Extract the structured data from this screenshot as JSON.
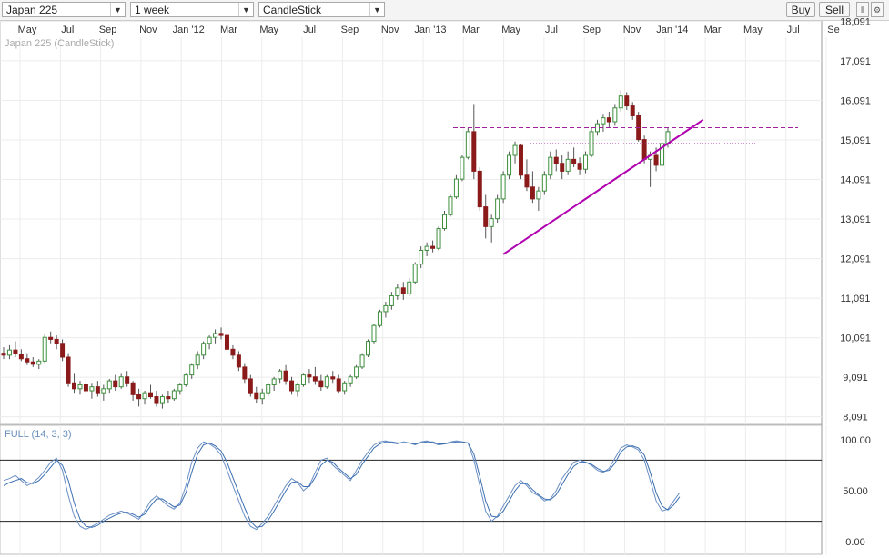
{
  "toolbar": {
    "instrument": "Japan 225",
    "period": "1 week",
    "chart_type": "CandleStick",
    "buy_label": "Buy",
    "sell_label": "Sell",
    "icons": [
      "candle-style-icon",
      "settings-icon"
    ]
  },
  "chart_data": [
    {
      "type": "candlestick",
      "title": "Japan 225 (CandleStick)",
      "x_ticks": [
        "May",
        "Jul",
        "Sep",
        "Nov",
        "Jan '12",
        "Mar",
        "May",
        "Jul",
        "Sep",
        "Nov",
        "Jan '13",
        "Mar",
        "May",
        "Jul",
        "Sep",
        "Nov",
        "Jan '14",
        "Mar",
        "May",
        "Jul",
        "Se"
      ],
      "y_ticks": [
        8091,
        9091,
        10091,
        11091,
        12091,
        13091,
        14091,
        15091,
        16091,
        17091,
        18091
      ],
      "ylim": [
        7900,
        18100
      ],
      "candles": [
        [
          9700,
          9850,
          9550,
          9650
        ],
        [
          9650,
          9900,
          9550,
          9780
        ],
        [
          9780,
          10000,
          9600,
          9680
        ],
        [
          9680,
          9800,
          9500,
          9560
        ],
        [
          9560,
          9700,
          9400,
          9480
        ],
        [
          9480,
          9600,
          9350,
          9420
        ],
        [
          9420,
          9550,
          9300,
          9500
        ],
        [
          9500,
          10200,
          9450,
          10100
        ],
        [
          10100,
          10250,
          9950,
          10050
        ],
        [
          10050,
          10150,
          9800,
          9950
        ],
        [
          9950,
          10050,
          9500,
          9600
        ],
        [
          9600,
          9700,
          8850,
          8950
        ],
        [
          8950,
          9200,
          8700,
          8800
        ],
        [
          8800,
          9000,
          8650,
          8900
        ],
        [
          8900,
          9050,
          8700,
          8750
        ],
        [
          8750,
          8950,
          8550,
          8850
        ],
        [
          8850,
          9000,
          8600,
          8700
        ],
        [
          8700,
          8900,
          8500,
          8800
        ],
        [
          8800,
          9050,
          8700,
          9000
        ],
        [
          9000,
          9150,
          8750,
          8850
        ],
        [
          8850,
          9200,
          8800,
          9100
        ],
        [
          9100,
          9250,
          8850,
          8950
        ],
        [
          8950,
          9000,
          8500,
          8650
        ],
        [
          8650,
          8800,
          8350,
          8550
        ],
        [
          8550,
          8750,
          8400,
          8700
        ],
        [
          8700,
          8900,
          8550,
          8600
        ],
        [
          8600,
          8750,
          8350,
          8450
        ],
        [
          8450,
          8650,
          8300,
          8600
        ],
        [
          8600,
          8750,
          8450,
          8550
        ],
        [
          8550,
          8800,
          8500,
          8750
        ],
        [
          8750,
          8950,
          8650,
          8900
        ],
        [
          8900,
          9200,
          8850,
          9150
        ],
        [
          9150,
          9450,
          9050,
          9400
        ],
        [
          9400,
          9750,
          9300,
          9650
        ],
        [
          9650,
          10000,
          9550,
          9950
        ],
        [
          9950,
          10150,
          9800,
          10100
        ],
        [
          10100,
          10300,
          9950,
          10200
        ],
        [
          10200,
          10350,
          10050,
          10150
        ],
        [
          10150,
          10250,
          9750,
          9800
        ],
        [
          9800,
          9900,
          9550,
          9650
        ],
        [
          9650,
          9750,
          9250,
          9350
        ],
        [
          9350,
          9450,
          8950,
          9050
        ],
        [
          9050,
          9150,
          8600,
          8700
        ],
        [
          8700,
          8850,
          8450,
          8550
        ],
        [
          8550,
          8800,
          8400,
          8700
        ],
        [
          8700,
          8950,
          8600,
          8900
        ],
        [
          8900,
          9100,
          8750,
          9050
        ],
        [
          9050,
          9300,
          8950,
          9250
        ],
        [
          9250,
          9400,
          8900,
          9000
        ],
        [
          9000,
          9100,
          8650,
          8750
        ],
        [
          8750,
          8950,
          8600,
          8900
        ],
        [
          8900,
          9200,
          8850,
          9150
        ],
        [
          9150,
          9300,
          8950,
          9100
        ],
        [
          9100,
          9350,
          8900,
          9000
        ],
        [
          9000,
          9150,
          8750,
          8850
        ],
        [
          8850,
          9150,
          8800,
          9100
        ],
        [
          9100,
          9250,
          8950,
          9050
        ],
        [
          9050,
          9150,
          8700,
          8750
        ],
        [
          8750,
          9000,
          8650,
          8950
        ],
        [
          8950,
          9150,
          8850,
          9100
        ],
        [
          9100,
          9400,
          9050,
          9350
        ],
        [
          9350,
          9700,
          9300,
          9650
        ],
        [
          9650,
          10050,
          9600,
          10000
        ],
        [
          10000,
          10450,
          9950,
          10400
        ],
        [
          10400,
          10800,
          10350,
          10750
        ],
        [
          10750,
          11000,
          10600,
          10900
        ],
        [
          10900,
          11250,
          10800,
          11150
        ],
        [
          11150,
          11450,
          11050,
          11350
        ],
        [
          11350,
          11500,
          11050,
          11200
        ],
        [
          11200,
          11600,
          11150,
          11500
        ],
        [
          11500,
          12000,
          11450,
          11950
        ],
        [
          11950,
          12400,
          11850,
          12300
        ],
        [
          12300,
          12500,
          12150,
          12400
        ],
        [
          12400,
          12550,
          12250,
          12350
        ],
        [
          12350,
          12900,
          12300,
          12850
        ],
        [
          12850,
          13300,
          12800,
          13200
        ],
        [
          13200,
          13700,
          13150,
          13650
        ],
        [
          13650,
          14200,
          13600,
          14100
        ],
        [
          14100,
          14700,
          14050,
          14650
        ],
        [
          14650,
          15400,
          14600,
          15300
        ],
        [
          15300,
          16000,
          14100,
          14300
        ],
        [
          14300,
          14400,
          13300,
          13400
        ],
        [
          13400,
          13700,
          12600,
          12900
        ],
        [
          12900,
          13200,
          12500,
          13100
        ],
        [
          13100,
          13700,
          13000,
          13600
        ],
        [
          13600,
          14300,
          13500,
          14200
        ],
        [
          14200,
          14800,
          14100,
          14700
        ],
        [
          14700,
          15050,
          14500,
          14950
        ],
        [
          14950,
          15000,
          14100,
          14200
        ],
        [
          14200,
          14600,
          13800,
          13900
        ],
        [
          13900,
          14300,
          13500,
          13600
        ],
        [
          13600,
          13900,
          13300,
          13800
        ],
        [
          13800,
          14300,
          13700,
          14200
        ],
        [
          14200,
          14800,
          14100,
          14650
        ],
        [
          14650,
          14850,
          14300,
          14500
        ],
        [
          14500,
          14700,
          14100,
          14300
        ],
        [
          14300,
          14800,
          14200,
          14600
        ],
        [
          14600,
          14900,
          14400,
          14500
        ],
        [
          14500,
          14650,
          14200,
          14350
        ],
        [
          14350,
          14800,
          14250,
          14700
        ],
        [
          14700,
          15400,
          14650,
          15300
        ],
        [
          15300,
          15600,
          15200,
          15500
        ],
        [
          15500,
          15750,
          15300,
          15650
        ],
        [
          15650,
          15800,
          15400,
          15550
        ],
        [
          15550,
          16000,
          15450,
          15900
        ],
        [
          15900,
          16350,
          15800,
          16200
        ],
        [
          16200,
          16300,
          15850,
          15950
        ],
        [
          15950,
          16050,
          15600,
          15700
        ],
        [
          15700,
          15800,
          15050,
          15100
        ],
        [
          15100,
          15200,
          14500,
          14600
        ],
        [
          14600,
          14800,
          13900,
          14700
        ],
        [
          14700,
          14900,
          14300,
          14450
        ],
        [
          14450,
          15100,
          14300,
          15000
        ],
        [
          15000,
          15400,
          14900,
          15300
        ]
      ],
      "trendline_upper_dashed": 15400,
      "resistance_dotted": 15000,
      "rising_trendline": [
        [
          12200,
          85
        ],
        [
          15600,
          119
        ]
      ]
    },
    {
      "type": "line",
      "title": "FULL (14, 3, 3)",
      "y_ticks": [
        "100.00",
        "50.00",
        "0.00"
      ],
      "ylim": [
        0,
        100
      ],
      "overbought": 80,
      "oversold": 20,
      "series": [
        {
          "values": [
            60,
            62,
            65,
            60,
            55,
            58,
            63,
            70,
            78,
            82,
            70,
            45,
            25,
            15,
            12,
            15,
            18,
            22,
            26,
            28,
            30,
            28,
            25,
            22,
            30,
            40,
            45,
            40,
            35,
            32,
            38,
            55,
            78,
            92,
            98,
            96,
            92,
            85,
            70,
            55,
            40,
            25,
            15,
            12,
            18,
            25,
            35,
            45,
            55,
            62,
            58,
            50,
            55,
            68,
            80,
            82,
            75,
            70,
            65,
            60,
            70,
            80,
            88,
            95,
            98,
            99,
            97,
            96,
            98,
            97,
            95,
            98,
            99,
            97,
            95,
            96,
            98,
            99,
            98,
            97,
            80,
            55,
            30,
            20,
            25,
            35,
            45,
            55,
            60,
            55,
            48,
            45,
            40,
            42,
            50,
            62,
            70,
            78,
            80,
            78,
            75,
            70,
            68,
            72,
            82,
            92,
            95,
            93,
            90,
            80,
            60,
            40,
            30,
            32,
            40,
            48
          ]
        },
        {
          "values": [
            55,
            58,
            60,
            62,
            58,
            57,
            60,
            66,
            73,
            80,
            75,
            60,
            38,
            22,
            15,
            14,
            16,
            20,
            23,
            26,
            28,
            29,
            27,
            24,
            27,
            35,
            42,
            42,
            38,
            34,
            36,
            48,
            68,
            86,
            95,
            97,
            94,
            89,
            78,
            63,
            48,
            33,
            20,
            14,
            15,
            21,
            30,
            40,
            50,
            58,
            59,
            54,
            54,
            63,
            75,
            80,
            78,
            72,
            67,
            62,
            66,
            76,
            84,
            92,
            96,
            98,
            98,
            97,
            97,
            97,
            96,
            97,
            98,
            98,
            96,
            96,
            97,
            98,
            98,
            97,
            86,
            64,
            40,
            25,
            24,
            30,
            40,
            50,
            57,
            57,
            51,
            46,
            42,
            41,
            46,
            56,
            66,
            74,
            78,
            78,
            76,
            72,
            69,
            70,
            77,
            88,
            93,
            94,
            92,
            85,
            68,
            48,
            35,
            31,
            36,
            44
          ]
        }
      ]
    }
  ]
}
